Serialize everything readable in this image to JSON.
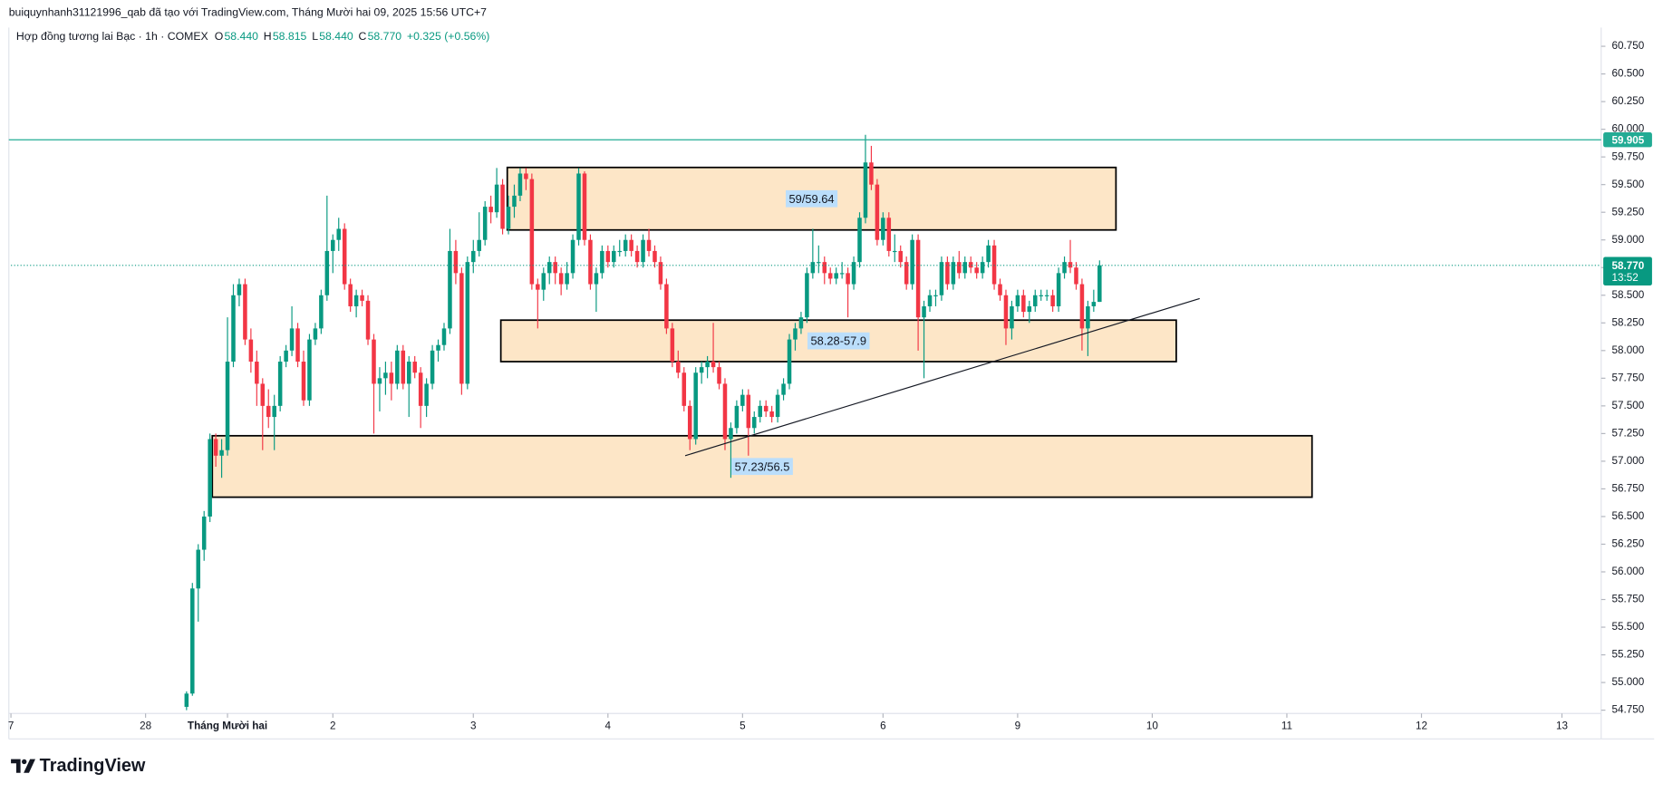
{
  "header": {
    "attribution": "buiquynhanh31121996_qab đã tạo với TradingView.com, Tháng Mười hai 09, 2025 15:56 UTC+7",
    "logo": "TradingView"
  },
  "chart_data": {
    "type": "candlestick",
    "title": "Hợp đồng tương lai Bạc · 1h · COMEX",
    "legend_values": [
      {
        "key": "O",
        "value": 58.44,
        "label": "58.440"
      },
      {
        "key": "H",
        "value": 58.815,
        "label": "58.815"
      },
      {
        "key": "L",
        "value": 58.44,
        "label": "58.440"
      },
      {
        "key": "C",
        "value": 58.77,
        "label": "58.770"
      }
    ],
    "change": "+0.325 (+0.56%)",
    "up_color": "#089981",
    "down_color": "#f23645",
    "last_price": {
      "value": 58.77,
      "label": "58.770",
      "countdown": "13:52"
    },
    "horizontal_line": {
      "value": 59.905,
      "label": "59.905",
      "color": "#22ab94"
    },
    "zones": [
      {
        "label": "59/59.64",
        "top": 59.655,
        "bottom": 59.09,
        "x": [
          84.8,
          188.8
        ]
      },
      {
        "label": "58.28-57.9",
        "top": 58.275,
        "bottom": 57.9,
        "x": [
          83.7,
          199.1
        ]
      },
      {
        "label": "57.23/56.5",
        "top": 57.23,
        "bottom": 56.675,
        "x": [
          34.4,
          222.3
        ]
      }
    ],
    "trend_line": {
      "x": [
        115.2,
        203.1
      ],
      "y": [
        57.05,
        58.47
      ]
    },
    "xlim": [
      0,
      271.7
    ],
    "ylim": [
      54.72,
      60.9
    ],
    "grid": false,
    "xticks": [
      {
        "value": 0,
        "label": "7"
      },
      {
        "value": 23,
        "label": "28"
      },
      {
        "value": 37,
        "label": "Tháng Mười hai"
      },
      {
        "value": 55,
        "label": "2"
      },
      {
        "value": 79,
        "label": "3"
      },
      {
        "value": 102,
        "label": "4"
      },
      {
        "value": 125,
        "label": "5"
      },
      {
        "value": 149,
        "label": "6"
      },
      {
        "value": 172,
        "label": "9"
      },
      {
        "value": 195,
        "label": "10"
      },
      {
        "value": 218,
        "label": "11"
      },
      {
        "value": 241,
        "label": "12"
      },
      {
        "value": 265,
        "label": "13"
      }
    ],
    "yticks": [
      {
        "value": 54.75,
        "label": "54.750"
      },
      {
        "value": 55,
        "label": "55.000"
      },
      {
        "value": 55.25,
        "label": "55.250"
      },
      {
        "value": 55.5,
        "label": "55.500"
      },
      {
        "value": 55.75,
        "label": "55.750"
      },
      {
        "value": 56,
        "label": "56.000"
      },
      {
        "value": 56.25,
        "label": "56.250"
      },
      {
        "value": 56.5,
        "label": "56.500"
      },
      {
        "value": 56.75,
        "label": "56.750"
      },
      {
        "value": 57,
        "label": "57.000"
      },
      {
        "value": 57.25,
        "label": "57.250"
      },
      {
        "value": 57.5,
        "label": "57.500"
      },
      {
        "value": 57.75,
        "label": "57.750"
      },
      {
        "value": 58,
        "label": "58.000"
      },
      {
        "value": 58.25,
        "label": "58.250"
      },
      {
        "value": 58.5,
        "label": "58.500"
      },
      {
        "value": 58.75,
        "label": "58.750"
      },
      {
        "value": 59,
        "label": "59.000"
      },
      {
        "value": 59.25,
        "label": "59.250"
      },
      {
        "value": 59.5,
        "label": "59.500"
      },
      {
        "value": 59.75,
        "label": "59.750"
      },
      {
        "value": 60,
        "label": "60.000"
      },
      {
        "value": 60.25,
        "label": "60.250"
      },
      {
        "value": 60.5,
        "label": "60.500"
      },
      {
        "value": 60.75,
        "label": "60.750"
      }
    ],
    "x": [
      30,
      31,
      32,
      33,
      34,
      35,
      36,
      37,
      38,
      39,
      40,
      41,
      42,
      43,
      44,
      45,
      46,
      47,
      48,
      49,
      50,
      51,
      52,
      53,
      54,
      55,
      56,
      57,
      58,
      59,
      60,
      61,
      62,
      63,
      64,
      65,
      66,
      67,
      68,
      69,
      70,
      71,
      72,
      73,
      74,
      75,
      76,
      77,
      78,
      79,
      80,
      81,
      82,
      83,
      84,
      85,
      86,
      87,
      88,
      89,
      90,
      91,
      92,
      93,
      94,
      95,
      96,
      97,
      98,
      99,
      100,
      101,
      102,
      103,
      104,
      105,
      106,
      107,
      108,
      109,
      110,
      111,
      112,
      113,
      114,
      115,
      116,
      117,
      118,
      119,
      120,
      121,
      122,
      123,
      124,
      125,
      126,
      127,
      128,
      129,
      130,
      131,
      132,
      133,
      134,
      135,
      136,
      137,
      138,
      139,
      140,
      141,
      142,
      143,
      144,
      145,
      146,
      147,
      148,
      149,
      150,
      151,
      152,
      153,
      154,
      155,
      156,
      157,
      158,
      159,
      160,
      161,
      162,
      163,
      164,
      165,
      166,
      167,
      168,
      169,
      170,
      171,
      172,
      173,
      174,
      175,
      176,
      177,
      178,
      179,
      180,
      181,
      182,
      183,
      184,
      185,
      186
    ],
    "candles": [
      [
        54.78,
        54.92,
        54.75,
        54.9
      ],
      [
        54.9,
        55.9,
        54.88,
        55.85
      ],
      [
        55.85,
        56.25,
        55.55,
        56.2
      ],
      [
        56.2,
        56.55,
        56.1,
        56.5
      ],
      [
        56.5,
        57.25,
        56.45,
        57.2
      ],
      [
        57.2,
        57.25,
        56.95,
        57.05
      ],
      [
        57.05,
        57.2,
        56.85,
        57.1
      ],
      [
        57.1,
        58.3,
        57.05,
        57.9
      ],
      [
        57.9,
        58.6,
        57.85,
        58.5
      ],
      [
        58.5,
        58.65,
        58.4,
        58.6
      ],
      [
        58.6,
        58.65,
        58.05,
        58.1
      ],
      [
        58.1,
        58.2,
        57.8,
        57.9
      ],
      [
        57.9,
        58,
        57.5,
        57.7
      ],
      [
        57.7,
        57.75,
        57.1,
        57.5
      ],
      [
        57.5,
        57.65,
        57.3,
        57.4
      ],
      [
        57.4,
        57.6,
        57.1,
        57.5
      ],
      [
        57.5,
        57.95,
        57.45,
        57.9
      ],
      [
        57.9,
        58.05,
        57.85,
        58
      ],
      [
        58,
        58.4,
        57.95,
        58.2
      ],
      [
        58.2,
        58.25,
        57.85,
        57.9
      ],
      [
        57.9,
        58,
        57.5,
        57.55
      ],
      [
        57.55,
        58.15,
        57.5,
        58.1
      ],
      [
        58.1,
        58.25,
        58.05,
        58.2
      ],
      [
        58.2,
        58.55,
        58.15,
        58.5
      ],
      [
        58.5,
        59.4,
        58.45,
        58.9
      ],
      [
        58.9,
        59.05,
        58.7,
        59
      ],
      [
        59,
        59.2,
        58.9,
        59.1
      ],
      [
        59.1,
        59.15,
        58.55,
        58.6
      ],
      [
        58.6,
        58.65,
        58.35,
        58.4
      ],
      [
        58.4,
        58.55,
        58.3,
        58.5
      ],
      [
        58.5,
        58.55,
        58.4,
        58.45
      ],
      [
        58.45,
        58.5,
        58.05,
        58.1
      ],
      [
        58.1,
        58.15,
        57.25,
        57.7
      ],
      [
        57.7,
        57.85,
        57.45,
        57.75
      ],
      [
        57.75,
        57.9,
        57.6,
        57.8
      ],
      [
        57.8,
        57.9,
        57.55,
        57.7
      ],
      [
        57.7,
        58.05,
        57.65,
        58
      ],
      [
        58,
        58.05,
        57.65,
        57.7
      ],
      [
        57.7,
        57.95,
        57.4,
        57.9
      ],
      [
        57.9,
        57.95,
        57.75,
        57.8
      ],
      [
        57.8,
        57.85,
        57.3,
        57.5
      ],
      [
        57.5,
        57.75,
        57.4,
        57.7
      ],
      [
        57.7,
        58.05,
        57.65,
        58
      ],
      [
        58,
        58.1,
        57.9,
        58.05
      ],
      [
        58.05,
        58.25,
        58,
        58.2
      ],
      [
        58.2,
        59.1,
        58.15,
        58.9
      ],
      [
        58.9,
        59,
        58.6,
        58.7
      ],
      [
        58.7,
        58.75,
        57.6,
        57.7
      ],
      [
        57.7,
        58.85,
        57.65,
        58.8
      ],
      [
        58.8,
        59,
        58.7,
        58.9
      ],
      [
        58.9,
        59.25,
        58.85,
        59
      ],
      [
        59,
        59.35,
        58.95,
        59.3
      ],
      [
        59.3,
        59.4,
        59.15,
        59.25
      ],
      [
        59.25,
        59.65,
        59.2,
        59.5
      ],
      [
        59.5,
        59.55,
        59.05,
        59.1
      ],
      [
        59.1,
        59.4,
        59.05,
        59.3
      ],
      [
        59.3,
        59.5,
        59.2,
        59.4
      ],
      [
        59.4,
        59.65,
        59.35,
        59.6
      ],
      [
        59.6,
        59.65,
        59.45,
        59.55
      ],
      [
        59.55,
        59.6,
        58.55,
        58.6
      ],
      [
        58.6,
        58.65,
        58.2,
        58.55
      ],
      [
        58.55,
        58.75,
        58.45,
        58.7
      ],
      [
        58.7,
        58.85,
        58.6,
        58.8
      ],
      [
        58.8,
        58.85,
        58.6,
        58.7
      ],
      [
        58.7,
        58.75,
        58.5,
        58.6
      ],
      [
        58.6,
        58.8,
        58.55,
        58.7
      ],
      [
        58.7,
        59.05,
        58.65,
        59
      ],
      [
        59,
        59.65,
        58.95,
        59.6
      ],
      [
        59.6,
        59.62,
        58.95,
        59
      ],
      [
        59,
        59.05,
        58.55,
        58.6
      ],
      [
        58.6,
        58.75,
        58.35,
        58.7
      ],
      [
        58.7,
        58.95,
        58.65,
        58.9
      ],
      [
        58.9,
        58.95,
        58.75,
        58.8
      ],
      [
        58.8,
        58.95,
        58.75,
        58.9
      ],
      [
        58.9,
        59,
        58.85,
        58.9
      ],
      [
        58.9,
        59.05,
        58.85,
        59
      ],
      [
        59,
        59.05,
        58.85,
        58.9
      ],
      [
        58.9,
        58.95,
        58.75,
        58.8
      ],
      [
        58.8,
        59.05,
        58.75,
        59
      ],
      [
        59,
        59.1,
        58.85,
        58.9
      ],
      [
        58.9,
        58.95,
        58.75,
        58.8
      ],
      [
        58.8,
        58.85,
        58.55,
        58.6
      ],
      [
        58.6,
        58.65,
        58.15,
        58.2
      ],
      [
        58.2,
        58.25,
        57.85,
        57.9
      ],
      [
        57.9,
        58,
        57.75,
        57.8
      ],
      [
        57.8,
        57.85,
        57.45,
        57.5
      ],
      [
        57.5,
        57.55,
        57.1,
        57.2
      ],
      [
        57.2,
        57.85,
        57.15,
        57.8
      ],
      [
        57.8,
        57.9,
        57.7,
        57.85
      ],
      [
        57.85,
        57.95,
        57.75,
        57.9
      ],
      [
        57.9,
        58.25,
        57.8,
        57.85
      ],
      [
        57.85,
        57.9,
        57.65,
        57.7
      ],
      [
        57.7,
        57.75,
        57.1,
        57.2
      ],
      [
        57.2,
        57.35,
        56.85,
        57.3
      ],
      [
        57.3,
        57.55,
        57.25,
        57.5
      ],
      [
        57.5,
        57.65,
        57.45,
        57.6
      ],
      [
        57.6,
        57.65,
        57.05,
        57.3
      ],
      [
        57.3,
        57.45,
        57.25,
        57.4
      ],
      [
        57.4,
        57.55,
        57.35,
        57.5
      ],
      [
        57.5,
        57.55,
        57.4,
        57.45
      ],
      [
        57.45,
        57.5,
        57.35,
        57.4
      ],
      [
        57.4,
        57.65,
        57.35,
        57.6
      ],
      [
        57.6,
        57.75,
        57.55,
        57.7
      ],
      [
        57.7,
        58.15,
        57.65,
        58.1
      ],
      [
        58.1,
        58.25,
        58,
        58.2
      ],
      [
        58.2,
        58.35,
        58.15,
        58.3
      ],
      [
        58.3,
        58.75,
        58.25,
        58.7
      ],
      [
        58.7,
        59.1,
        58.65,
        58.8
      ],
      [
        58.8,
        58.95,
        58.7,
        58.8
      ],
      [
        58.8,
        58.85,
        58.6,
        58.7
      ],
      [
        58.7,
        58.75,
        58.6,
        58.65
      ],
      [
        58.65,
        58.75,
        58.6,
        58.7
      ],
      [
        58.7,
        58.8,
        58.65,
        58.7
      ],
      [
        58.7,
        58.75,
        58.3,
        58.6
      ],
      [
        58.6,
        58.85,
        58.55,
        58.8
      ],
      [
        58.8,
        59.25,
        58.75,
        59.2
      ],
      [
        59.2,
        59.95,
        59.15,
        59.7
      ],
      [
        59.7,
        59.85,
        59.45,
        59.5
      ],
      [
        59.5,
        59.55,
        58.95,
        59
      ],
      [
        59,
        59.25,
        58.95,
        59.2
      ],
      [
        59.2,
        59.25,
        58.85,
        58.9
      ],
      [
        58.9,
        59.05,
        58.8,
        58.9
      ],
      [
        58.9,
        58.95,
        58.75,
        58.8
      ],
      [
        58.8,
        58.85,
        58.55,
        58.6
      ],
      [
        58.6,
        59.05,
        58.55,
        59
      ],
      [
        59,
        59.05,
        58,
        58.3
      ],
      [
        58.3,
        58.45,
        57.75,
        58.4
      ],
      [
        58.4,
        58.55,
        58.35,
        58.5
      ],
      [
        58.5,
        58.55,
        58.4,
        58.5
      ],
      [
        58.5,
        58.85,
        58.45,
        58.8
      ],
      [
        58.8,
        58.85,
        58.55,
        58.6
      ],
      [
        58.6,
        58.85,
        58.55,
        58.8
      ],
      [
        58.8,
        58.9,
        58.65,
        58.7
      ],
      [
        58.7,
        58.85,
        58.65,
        58.8
      ],
      [
        58.8,
        58.85,
        58.7,
        58.75
      ],
      [
        58.75,
        58.8,
        58.65,
        58.7
      ],
      [
        58.7,
        58.85,
        58.65,
        58.8
      ],
      [
        58.8,
        59,
        58.75,
        58.95
      ],
      [
        58.95,
        59,
        58.55,
        58.6
      ],
      [
        58.6,
        58.65,
        58.45,
        58.5
      ],
      [
        58.5,
        58.55,
        58.05,
        58.2
      ],
      [
        58.2,
        58.45,
        58.1,
        58.4
      ],
      [
        58.4,
        58.55,
        58.35,
        58.5
      ],
      [
        58.5,
        58.55,
        58.3,
        58.35
      ],
      [
        58.35,
        58.45,
        58.25,
        58.4
      ],
      [
        58.4,
        58.55,
        58.35,
        58.5
      ],
      [
        58.5,
        58.55,
        58.45,
        58.5
      ],
      [
        58.5,
        58.55,
        58.45,
        58.5
      ],
      [
        58.5,
        58.55,
        58.35,
        58.4
      ],
      [
        58.4,
        58.75,
        58.35,
        58.7
      ],
      [
        58.7,
        58.85,
        58.65,
        58.8
      ],
      [
        58.8,
        59,
        58.7,
        58.75
      ],
      [
        58.75,
        58.8,
        58.55,
        58.6
      ],
      [
        58.6,
        58.65,
        58,
        58.2
      ],
      [
        58.2,
        58.45,
        57.95,
        58.4
      ],
      [
        58.4,
        58.55,
        58.35,
        58.44
      ],
      [
        58.44,
        58.815,
        58.44,
        58.77
      ]
    ]
  }
}
